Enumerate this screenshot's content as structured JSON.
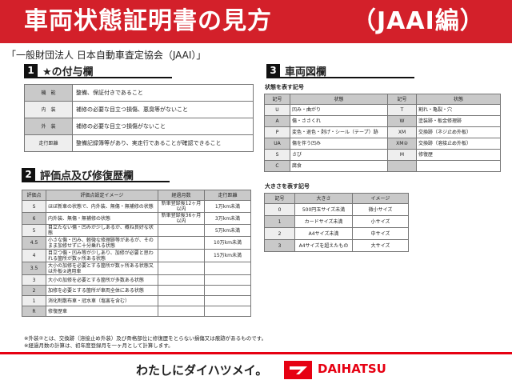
{
  "header": {
    "title": "車両状態証明書の見方",
    "subtitle": "（JAAI編）"
  },
  "org": "「一般財団法人 日本自動車査定協会（JAAI）」",
  "s1": {
    "num": "1",
    "title": "★の付与欄",
    "rows": [
      [
        "機　能",
        "整備、保証付きであること"
      ],
      [
        "内　装",
        "補修の必要な目立つ損傷、悪臭等がないこと"
      ],
      [
        "外　装",
        "補修の必要な目立つ損傷がないこと"
      ],
      [
        "走行距離",
        "整備記録簿等があり、実走行であることが確認できること"
      ]
    ]
  },
  "s2": {
    "num": "2",
    "title": "評価点及び修復歴欄",
    "headers": [
      "評価点",
      "評価点設定イメージ",
      "経過月数",
      "走行距離"
    ],
    "rows": [
      [
        "S",
        "ほぼ新車の状態で、内外装、無傷・無補修の状態",
        "新車登録後12ヶ月以内",
        "1万km未満"
      ],
      [
        "6",
        "内外装、無傷・無補修の状態",
        "新車登録後36ヶ月以内",
        "3万km未満"
      ],
      [
        "5",
        "目立たない傷・凹みが少しあるが、概ね良好な状態",
        "",
        "5万km未満"
      ],
      [
        "4.5",
        "小さな傷・凹み、軽微な修理跡等があるが、そのまま加修せずに十分乗れる状態",
        "",
        "10万km未満"
      ],
      [
        "4",
        "目立つ傷・凹み等が少しあり、加修が必要と思われる箇所が数ヶ所ある状態",
        "",
        "15万km未満"
      ],
      [
        "3.5",
        "大小の加修を必要とする箇所が数ヶ所ある状態又は外板②適用車",
        "",
        ""
      ],
      [
        "3",
        "大小の加修を必要とする箇所が多数ある状態",
        "",
        ""
      ],
      [
        "2",
        "加修を必要とする箇所が車両全体にある状態",
        "",
        ""
      ],
      [
        "1",
        "消化剤散布車・冠水車（塩害を含む）",
        "",
        ""
      ],
      [
        "R",
        "修復歴車",
        "",
        ""
      ]
    ]
  },
  "notes": [
    "※外装②とは、交換跡（溶接止め外装）及び骨格部位に修復歴をとらない損傷又は痕跡があるものです。",
    "※経過月数の計算は、初年度登録月を一ヶ月として計算します。"
  ],
  "s3": {
    "num": "3",
    "title": "車両図欄",
    "cap1": "状態を表す記号",
    "headers1": [
      "記号",
      "状態",
      "記号",
      "状態"
    ],
    "rows1": [
      [
        "U",
        "凹み・曲がり",
        "T",
        "割れ・亀裂・穴"
      ],
      [
        "A",
        "傷・ささくれ",
        "W",
        "塗装跡・板金修理跡"
      ],
      [
        "P",
        "変色・退色・剥げ・シール（テープ）跡",
        "XM",
        "交換跡（ネジ止め外板）"
      ],
      [
        "UA",
        "傷を伴う凹み",
        "XM②",
        "交換跡（溶接止め外板）"
      ],
      [
        "S",
        "さび",
        "M",
        "修復歴"
      ],
      [
        "C",
        "腐食",
        "",
        ""
      ]
    ],
    "cap2": "大きさを表す記号",
    "headers2": [
      "記号",
      "大きさ",
      "イメージ"
    ],
    "rows2": [
      [
        "0",
        "500円玉サイズ未満",
        "微小サイズ"
      ],
      [
        "1",
        "カードサイズ未満",
        "小サイズ"
      ],
      [
        "2",
        "A4サイズ未満",
        "中サイズ"
      ],
      [
        "3",
        "A4サイズを超えたもの",
        "大サイズ"
      ]
    ]
  },
  "footer": {
    "slogan": "わたしにダイハツメイ。",
    "brand": "DAIHATSU",
    "logo_color": "#e60012"
  }
}
